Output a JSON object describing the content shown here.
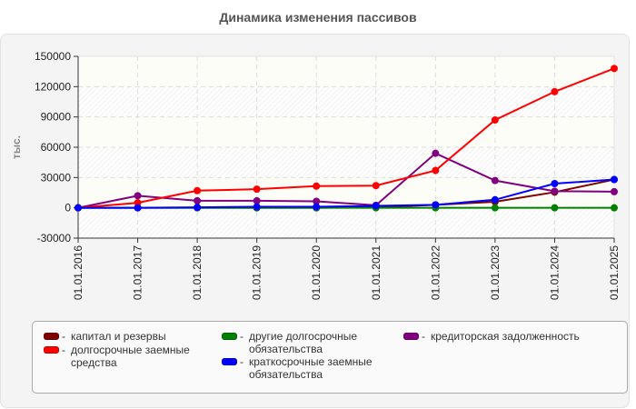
{
  "title": "Динамика изменения пассивов",
  "chart_data": {
    "type": "line",
    "title": "Динамика изменения пассивов",
    "xlabel": "",
    "ylabel": "тыс.",
    "ylim": [
      -30000,
      150000
    ],
    "yticks": [
      150000,
      120000,
      90000,
      60000,
      30000,
      0,
      -30000
    ],
    "ytick_labels": [
      "150000",
      "120000",
      "90000",
      "60000",
      "30000",
      "0",
      "-30000"
    ],
    "grid": true,
    "legend_position": "bottom",
    "x": [
      "01.01.2016",
      "01.01.2017",
      "01.01.2018",
      "01.01.2019",
      "01.01.2020",
      "01.01.2021",
      "01.01.2022",
      "01.01.2023",
      "01.01.2024",
      "01.01.2025"
    ],
    "series": [
      {
        "name": "капитал и резервы",
        "color": "#800000",
        "values": [
          0,
          0,
          0,
          0,
          0,
          500,
          3000,
          6000,
          15500,
          28000
        ]
      },
      {
        "name": "другие долгосрочные обязательства",
        "color": "#008000",
        "values": [
          0,
          0,
          0,
          0,
          0,
          0,
          0,
          0,
          0,
          0
        ]
      },
      {
        "name": "кредиторская задолженность",
        "color": "#800080",
        "values": [
          0,
          12000,
          7000,
          7000,
          6500,
          2500,
          54000,
          27000,
          16500,
          16000
        ]
      },
      {
        "name": "долгосрочные заемные средства",
        "color": "#ff0000",
        "values": [
          0,
          5000,
          17000,
          18500,
          21500,
          22000,
          37000,
          87000,
          115000,
          138000
        ]
      },
      {
        "name": "краткосрочные заемные обязательства",
        "color": "#0000ff",
        "values": [
          0,
          0,
          500,
          1000,
          1000,
          2000,
          3000,
          8000,
          24000,
          28000
        ]
      }
    ]
  },
  "legend": {
    "items": [
      {
        "label": "капитал и резервы",
        "color": "#800000"
      },
      {
        "label": "долгосрочные заемные\nсредства",
        "color": "#ff0000"
      },
      {
        "label": "другие долгосрочные\nобязательства",
        "color": "#008000"
      },
      {
        "label": "краткосрочные заемные\nобязательства",
        "color": "#0000ff"
      },
      {
        "label": "кредиторская задолженность",
        "color": "#800080"
      }
    ]
  }
}
